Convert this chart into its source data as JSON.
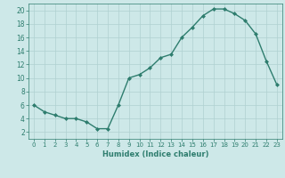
{
  "x": [
    0,
    1,
    2,
    3,
    4,
    5,
    6,
    7,
    8,
    9,
    10,
    11,
    12,
    13,
    14,
    15,
    16,
    17,
    18,
    19,
    20,
    21,
    22,
    23
  ],
  "y": [
    6,
    5,
    4.5,
    4,
    4,
    3.5,
    2.5,
    2.5,
    6,
    10,
    10.5,
    11.5,
    13,
    13.5,
    16,
    17.5,
    19.2,
    20.2,
    20.2,
    19.5,
    18.5,
    16.5,
    12.5,
    9
  ],
  "xlabel": "Humidex (Indice chaleur)",
  "xlim": [
    -0.5,
    23.5
  ],
  "ylim": [
    1,
    21
  ],
  "yticks": [
    2,
    4,
    6,
    8,
    10,
    12,
    14,
    16,
    18,
    20
  ],
  "xticks": [
    0,
    1,
    2,
    3,
    4,
    5,
    6,
    7,
    8,
    9,
    10,
    11,
    12,
    13,
    14,
    15,
    16,
    17,
    18,
    19,
    20,
    21,
    22,
    23
  ],
  "line_color": "#2e7d6e",
  "marker_color": "#2e7d6e",
  "bg_color": "#cde8e8",
  "grid_color": "#afd0d0"
}
